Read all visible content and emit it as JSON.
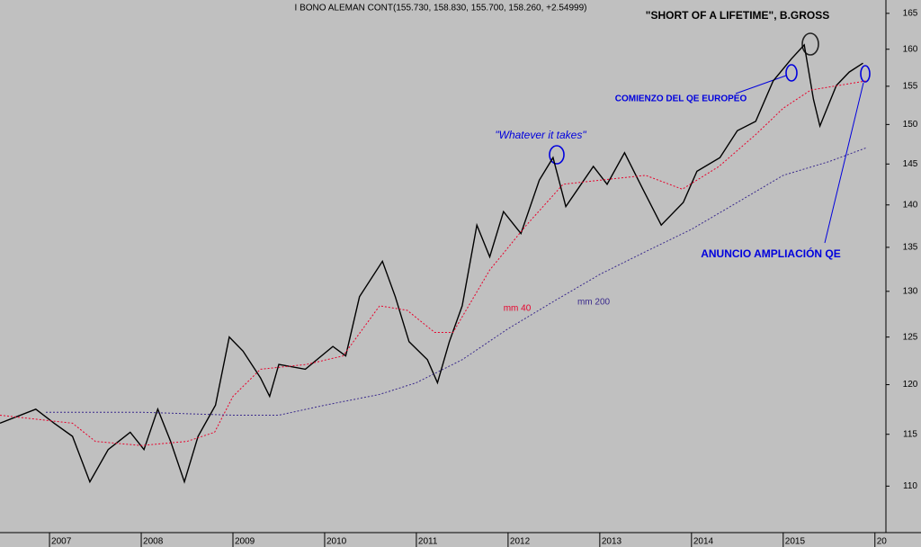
{
  "chart_data": {
    "type": "line",
    "title": "I BONO ALEMAN CONT(155.730, 158.830, 155.700, 158.260, +2.54999)",
    "subtitle": "\"SHORT OF A LIFETIME\", B.GROSS",
    "annotations": [
      "COMIENZO DEL QE EUROPEO",
      "\"Whatever it takes\"",
      "ANUNCIO AMPLIACIÓN QE"
    ],
    "log_scale": true,
    "xlim": [
      2006.46,
      2016.12
    ],
    "xticks": [
      2007,
      2008,
      2009,
      2010,
      2011,
      2012,
      2013,
      2014,
      2015,
      {
        "value": 2016,
        "label": "20"
      }
    ],
    "ylim": [
      105.7,
      166.9
    ],
    "yticks": [
      110,
      115,
      120,
      125,
      130,
      135,
      140,
      145,
      150,
      155,
      160,
      165
    ],
    "series": [
      {
        "name": "I BONO ALEMAN CONT",
        "color": "#000000",
        "x": [
          2006.46,
          2006.85,
          2007.05,
          2007.25,
          2007.44,
          2007.64,
          2007.88,
          2008.03,
          2008.18,
          2008.32,
          2008.47,
          2008.62,
          2008.81,
          2008.96,
          2009.11,
          2009.3,
          2009.4,
          2009.5,
          2009.79,
          2010.09,
          2010.23,
          2010.38,
          2010.63,
          2010.77,
          2010.92,
          2011.12,
          2011.23,
          2011.36,
          2011.5,
          2011.66,
          2011.8,
          2011.95,
          2012.14,
          2012.34,
          2012.49,
          2012.63,
          2012.93,
          2013.08,
          2013.27,
          2013.47,
          2013.67,
          2013.91,
          2014.06,
          2014.31,
          2014.5,
          2014.7,
          2014.89,
          2015.09,
          2015.23,
          2015.33,
          2015.4,
          2015.58,
          2015.72,
          2015.87
        ],
        "values": [
          116.1,
          117.5,
          116.1,
          114.8,
          110.4,
          113.5,
          115.2,
          113.5,
          117.5,
          114.3,
          110.4,
          114.8,
          117.9,
          125.0,
          123.5,
          120.7,
          118.8,
          122.1,
          121.6,
          124.0,
          123.0,
          129.4,
          133.4,
          129.4,
          124.5,
          122.6,
          120.2,
          124.5,
          128.4,
          137.6,
          133.9,
          139.2,
          136.6,
          143.0,
          145.8,
          139.8,
          144.7,
          142.5,
          146.4,
          141.9,
          137.6,
          140.3,
          144.1,
          145.8,
          149.2,
          150.4,
          155.7,
          158.7,
          160.6,
          153.3,
          149.8,
          155.1,
          156.9,
          158.1
        ]
      },
      {
        "name": "mm 40",
        "color": "#e8002a",
        "x": [
          2006.46,
          2007.25,
          2007.5,
          2008.0,
          2008.5,
          2008.8,
          2009.0,
          2009.3,
          2009.8,
          2010.2,
          2010.6,
          2010.9,
          2011.2,
          2011.4,
          2011.8,
          2012.2,
          2012.6,
          2013.0,
          2013.5,
          2013.9,
          2014.3,
          2014.7,
          2015.0,
          2015.3,
          2015.9
        ],
        "values": [
          116.9,
          116.1,
          114.3,
          113.9,
          114.3,
          115.2,
          118.8,
          121.6,
          122.1,
          123.0,
          128.4,
          127.9,
          125.5,
          125.5,
          132.4,
          137.6,
          142.5,
          143.0,
          143.6,
          141.9,
          144.7,
          148.7,
          152.1,
          154.5,
          155.7
        ]
      },
      {
        "name": "mm 200",
        "color": "#3a2a8c",
        "x": [
          2006.96,
          2008.0,
          2009.0,
          2009.5,
          2010.0,
          2010.6,
          2011.0,
          2011.5,
          2012.0,
          2012.5,
          2013.0,
          2013.5,
          2014.0,
          2014.5,
          2015.0,
          2015.5,
          2015.9
        ],
        "values": [
          117.2,
          117.2,
          116.9,
          116.9,
          117.9,
          119.0,
          120.2,
          122.6,
          125.9,
          128.9,
          131.9,
          134.5,
          137.1,
          140.3,
          143.6,
          145.3,
          147.0
        ]
      }
    ]
  }
}
